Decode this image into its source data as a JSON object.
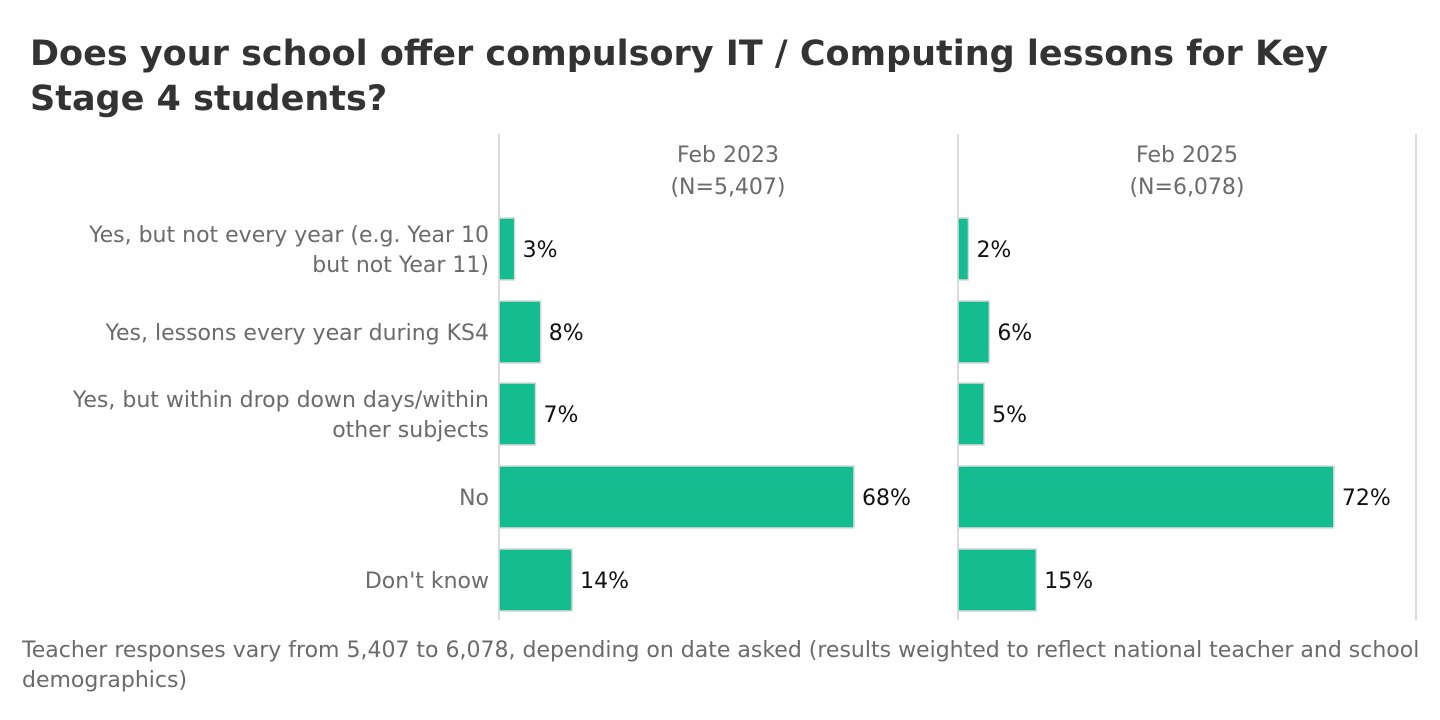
{
  "chart_data": {
    "type": "bar",
    "orientation": "horizontal",
    "title": "Does your school offer compulsory IT / Computing lessons for Key Stage 4 students?",
    "categories": [
      "Yes, but not every year (e.g. Year 10 but not Year 11)",
      "Yes, lessons every year during KS4",
      "Yes, but within drop down days/within other subjects",
      "No",
      "Don't know"
    ],
    "category_lines": [
      [
        "Yes, but not every year (e.g. Year 10",
        "but not Year 11)"
      ],
      [
        "Yes, lessons every year during KS4"
      ],
      [
        "Yes, but within drop down days/within",
        "other subjects"
      ],
      [
        "No"
      ],
      [
        "Don't know"
      ]
    ],
    "panels": [
      {
        "name": "Feb 2023",
        "header": [
          "Feb 2023",
          "(N=5,407)"
        ],
        "values": [
          3,
          8,
          7,
          68,
          14
        ],
        "labels": [
          "3%",
          "8%",
          "7%",
          "68%",
          "14%"
        ]
      },
      {
        "name": "Feb 2025",
        "header": [
          "Feb 2025",
          "(N=6,078)"
        ],
        "values": [
          2,
          6,
          5,
          72,
          15
        ],
        "labels": [
          "2%",
          "6%",
          "5%",
          "72%",
          "15%"
        ]
      }
    ],
    "xlabel": "",
    "ylabel": "",
    "xlim": [
      0,
      80
    ],
    "grid": false,
    "legend": "none",
    "colors": {
      "bar": "#13bd90",
      "bar_edge": "#d9d9d9",
      "axis": "#d0d0d0",
      "category_text": "#6b6b6b",
      "value_text": "#111111",
      "header_text": "#6b6b6b"
    }
  },
  "footnote": "Teacher responses vary from 5,407 to 6,078, depending on date asked (results weighted to reflect national teacher and school demographics)"
}
